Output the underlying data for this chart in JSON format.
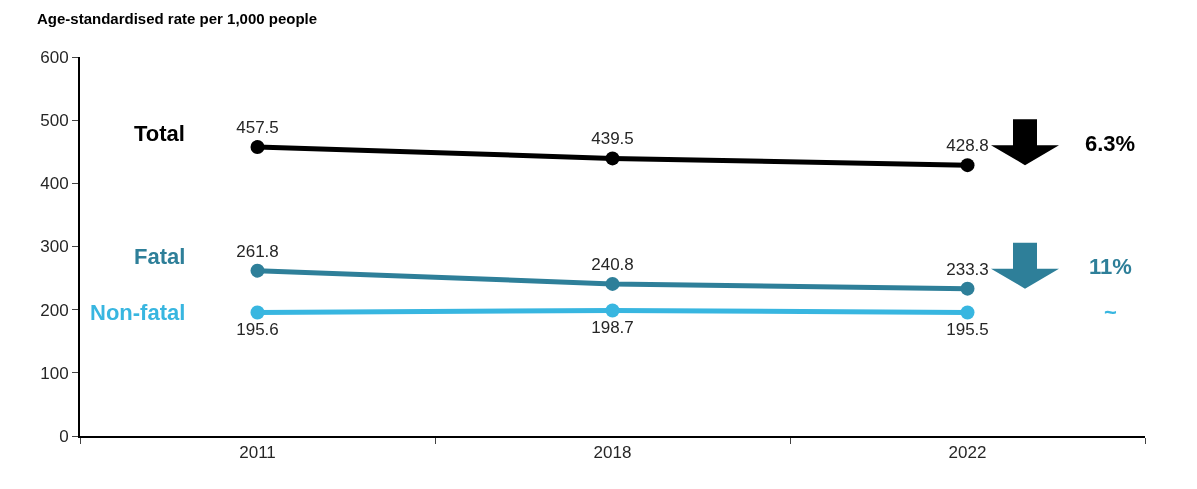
{
  "chart_data": {
    "type": "line",
    "ylabel": "Age-standardised rate per 1,000 people",
    "categories": [
      "2011",
      "2018",
      "2022"
    ],
    "series": [
      {
        "name": "Total",
        "color": "#000000",
        "values": [
          457.5,
          439.5,
          428.8
        ]
      },
      {
        "name": "Fatal",
        "color": "#2e7f99",
        "values": [
          261.8,
          240.8,
          233.3
        ]
      },
      {
        "name": "Non-fatal",
        "color": "#38b6e0",
        "values": [
          195.6,
          198.7,
          195.5
        ]
      }
    ],
    "ylim": [
      0,
      600
    ],
    "yticks": [
      0,
      100,
      200,
      300,
      400,
      500,
      600
    ],
    "data_labels": true,
    "marker": "circle",
    "line_style": "solid",
    "legend": false,
    "annotations": [
      "6.3%",
      "11%",
      "~"
    ]
  }
}
